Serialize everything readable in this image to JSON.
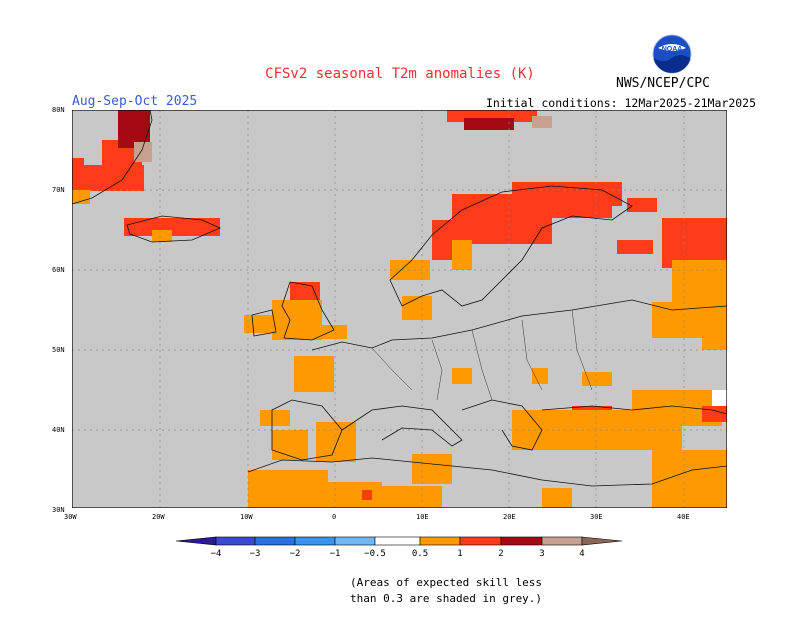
{
  "header": {
    "title": "CFSv2 seasonal T2m anomalies (K)",
    "period": "Aug-Sep-Oct 2025",
    "initial_conditions": "Initial conditions: 12Mar2025-21Mar2025",
    "agency": "NWS/NCEP/CPC",
    "logo_text": "NOAA"
  },
  "map": {
    "region": "Europe",
    "lat_labels": [
      "80N",
      "70N",
      "60N",
      "50N",
      "40N",
      "30N"
    ],
    "lon_labels": [
      "30W",
      "20W",
      "10W",
      "0",
      "10E",
      "20E",
      "30E",
      "40E"
    ],
    "shading": {
      "grey": "#c8c8c8",
      "anom_0_5_1": "#ff9900",
      "anom_1_2": "#ff3b1a",
      "anom_2_3": "#a50a14"
    }
  },
  "colorbar": {
    "ticks": [
      "−4",
      "−3",
      "−2",
      "−1",
      "−0.5",
      "0.5",
      "1",
      "2",
      "3",
      "4"
    ],
    "colors": [
      "#2a1a9a",
      "#3b4bd1",
      "#2b6fe0",
      "#3a93ee",
      "#72b6f5",
      "#ffffff",
      "#ff9900",
      "#ff3b1a",
      "#a50a14",
      "#c8a090",
      "#8a6455"
    ]
  },
  "footnote": {
    "line1": "(Areas of expected skill less",
    "line2": "than 0.3 are shaded in grey.)"
  }
}
